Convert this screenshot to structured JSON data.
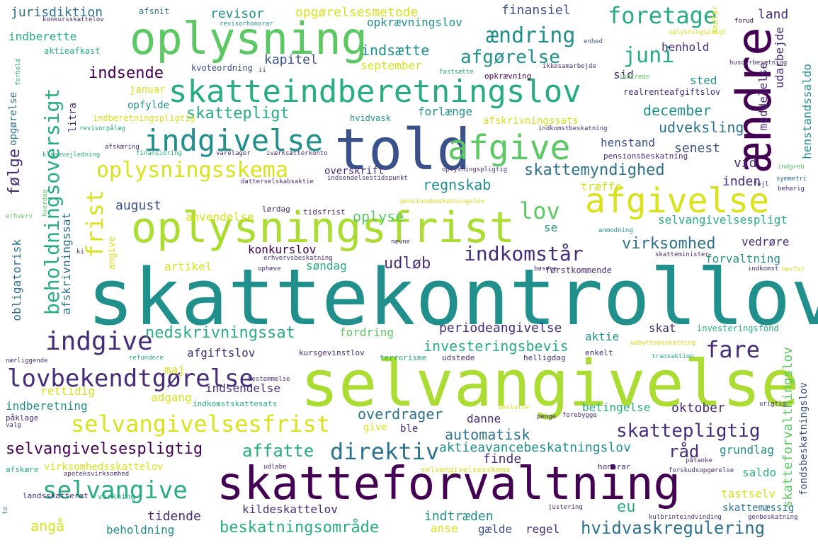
{
  "palette": {
    "c0": "#440154",
    "c1": "#472c7a",
    "c2": "#3b518b",
    "c3": "#2c718e",
    "c4": "#21908d",
    "c5": "#27ad81",
    "c6": "#5cc863",
    "c7": "#aadc32",
    "c8": "#d9e21a",
    "c9": "#fde725"
  },
  "words": {
    "w_skattekontrollov": "skattekontrollov",
    "w_selvangivelse": "selvangivelse",
    "w_skatteforvaltning": "skatteforvaltning",
    "w_told": "told",
    "w_oplysningsfrist": "oplysningsfrist",
    "w_oplysning": "oplysning",
    "w_skatteindberetningslov": "skatteindberetningslov",
    "w_aendre": "ændre",
    "w_afgivelse": "afgivelse",
    "w_indgivelse": "indgivelse",
    "w_afgive": "afgive",
    "w_oplysningsskema": "oplysningsskema",
    "w_selvangivelsesfrist": "selvangivelsesfrist",
    "w_lovbekendtgorelse": "lovbekendtgørelse",
    "w_selvangive": "selvangive",
    "w_indgive": "indgive",
    "w_beholdningsoversigt": "beholdningsoversigt",
    "w_foretage": "foretage",
    "w_aendring": "ændring",
    "w_juni": "juni",
    "w_afgorelse": "afgørelse",
    "w_lov": "lov",
    "w_frist": "frist",
    "w_indkomstar": "indkomstår",
    "w_fare": "fare",
    "w_direktiv": "direktiv",
    "w_skattepligtig": "skattepligtig",
    "w_selvangivelsespligtig": "selvangivelsespligtig",
    "w_hvidvaskregulering": "hvidvaskregulering",
    "w_beskatningsomrade": "beskatningsområde",
    "w_nedskrivningssat": "nedskrivningssat",
    "w_skattepligt": "skattepligt",
    "w_skattemyndighed": "skattemyndighed",
    "w_periodeangivelse": "periodeangivelse",
    "w_aktieavancebeskatningslov": "aktieavancebeskatningslov",
    "w_automatisk": "automatisk",
    "w_affatte": "affatte",
    "w_overdrager": "overdrager",
    "w_investeringsbevis": "investeringsbevis",
    "w_virksomhed": "virksomhed",
    "w_selvangivelsespligt": "selvangivelsespligt",
    "w_regnskab": "regnskab",
    "w_oplyse": "oplyse",
    "w_indsende": "indsende",
    "w_indsaette": "indsætte",
    "w_kapitel": "kapitel",
    "w_december": "december",
    "w_udveksling": "udveksling",
    "w_folge": "følge",
    "w_udlob": "udløb",
    "w_anvendelse": "anvendelse",
    "w_forlaenge": "forlænge",
    "w_september": "september",
    "w_opgorelsesmetode": "opgørelsesmetode",
    "w_revisor": "revisor",
    "w_jurisdiktion": "jurisdiktion",
    "w_finansiel": "finansiel",
    "w_land": "land",
    "w_opkraevningslov": "opkrævningslov",
    "w_indberette": "indberette",
    "w_sid": "sid",
    "w_henhold": "henhold",
    "w_sted": "sted",
    "w_meddelelse": "meddelelse",
    "w_udarbejde": "udarbejde",
    "w_realrenteafgiftslov": "realrenteafgiftslov",
    "w_henstandssaldo": "henstandssaldo",
    "w_august": "august",
    "w_traeffe": "træffe",
    "w_vid": "vid",
    "w_inden": "inden",
    "w_senest": "senest",
    "w_henstand": "henstand",
    "w_konkurslov": "konkurslov",
    "w_se": "se",
    "w_artikel": "artikel",
    "w_sondag": "søndag",
    "w_vedrore": "vedrøre",
    "w_forvaltning": "forvaltning",
    "w_forstkommende": "førstkommende",
    "w_obligatorisk": "obligatorisk",
    "w_afskrivningssat": "afskrivningssat",
    "w_angive": "angive",
    "w_aktie": "aktie",
    "w_skat": "skat",
    "w_fordring": "fordring",
    "w_investeringsfond": "investeringsfond",
    "w_afgiftslov": "afgiftslov",
    "w_maj": "maj",
    "w_rettidig": "rettidig",
    "w_indsendelse": "indsendelse",
    "w_adgang": "adgang",
    "w_indberetning": "indberetning",
    "w_give": "give",
    "w_ble": "ble",
    "w_danne": "danne",
    "w_oktober": "oktober",
    "w_betingelse": "betingelse",
    "w_finde": "finde",
    "w_raad": "råd",
    "w_grundlag": "grundlag",
    "w_saldo": "saldo",
    "w_virksomhedsskattelov": "virksomhedsskattelov",
    "w_tastselv": "tastselv",
    "w_eu": "eu",
    "w_kildeskattelov": "kildeskattelov",
    "w_indtraeden": "indtræden",
    "w_anse": "anse",
    "w_gaelde": "gælde",
    "w_regel": "regel",
    "w_tidende": "tidende",
    "w_beholdning": "beholdning",
    "w_anga": "angå",
    "w_skattemaessig": "skattemæssig",
    "w_skatteforvaltningslov": "skatteforvaltningslov",
    "w_fondsbeskatningslov": "fondsbeskatningslov",
    "w_januar": "januar",
    "w_opfylde": "opfylde",
    "w_indberetningspligtig": "indberetningspligtig",
    "w_litra": "litra",
    "w_afskrivningssats": "afskrivningssats",
    "w_indkomstbeskatning": "indkomstbeskatning",
    "w_overskrift": "overskrift",
    "w_pensionsbeskatning": "pensionsbeskatning",
    "w_opgorelse": "opgørelse",
    "w_hvidvask": "hvidvask",
    "w_opkraevning": "opkrævning",
    "w_kvoteordning": "kvoteordning",
    "w_aktieafkast": "aktieafkast",
    "w_afsnit": "afsnit",
    "w_konkursskattelov": "konkursskattelov",
    "w_revisorhonorar": "revisorhonorar",
    "w_enhed": "enhed",
    "w_medfor": "medfør",
    "w_forud": "forud",
    "w_oplysningspligt": "oplysningspligt",
    "w_ikkesamarbejde": "ikkesamarbejde",
    "w_husdyrbesaetning": "husdyrbesætning",
    "w_fastsaette": "fastsætte",
    "w_ii": "ii",
    "w_indtraede": "indtræde",
    "w_forhold": "forhold",
    "w_revisorpaalaeg": "revisorpålæg",
    "w_klagevejledning": "klagevejledning",
    "w_afskaering": "afskæring",
    "w_finansiering": "finansiering",
    "w_varelager": "varelager",
    "w_ivaerksaetterkonto": "iværksætterkonto",
    "w_datterselskabsaktie": "datterselskabsaktie",
    "w_indsendelsestidspunkt": "indsendelsestidspunkt",
    "w_oplysningspligtig": "oplysningspligtig",
    "w_indgreb": "indgreb",
    "w_symmetri": "symmetri",
    "w_behorig": "behørig",
    "w_fejl": "fejl",
    "w_tidsfrist": "tidsfrist",
    "w_lordag": "lørdag",
    "w_pensionsbeskatningslov": "pensionsbeskatningslov",
    "w_erhverv": "erhverv",
    "w_hverdag": "hverdag",
    "w_anmodning": "anmodning",
    "w_naevne": "nævne",
    "w_skatteminister": "skatteminister",
    "w_erhvervsbeskatning": "erhvervsbeskatning",
    "w_ophaeve": "ophæve",
    "w_basere": "basere",
    "w_indkomst": "indkomst",
    "w_herfor": "herfor",
    "w_ki": "ki",
    "w_naerliggende": "nærliggende",
    "w_refundere": "refundere",
    "w_kursgevinstlov": "kursgevinstlov",
    "w_enkelt": "enkelt",
    "w_udbyttebeskatning": "udbyttebeskatning",
    "w_terrorisme": "terrorisme",
    "w_udstede": "udstede",
    "w_helligdag": "helligdag",
    "w_transaktion": "transaktion",
    "w_bestemmelse": "bestemmelse",
    "w_indkomstskattesats": "indkomstskattesats",
    "w_paaklage": "påklage",
    "w_valg": "valg",
    "w_beslutte": "beslutte",
    "w_penge": "penge",
    "w_forebygge": "forebygge",
    "w_urigtig": "urigtig",
    "w_afskaere": "afskære",
    "w_apoteksvirksomhed": "apoteksvirksomhed",
    "w_udlabe": "udlabe",
    "w_honorar": "honorar",
    "w_forskudsopgorelse": "forskudsopgørelse",
    "w_paatanke": "påtanke",
    "w_selvangivelsesskema": "selvangivelsesskema",
    "w_landsskatteret": "landsskatteret",
    "w_virkning": "virkning",
    "w_justering": "justering",
    "w_kulbrinteindvinding": "kulbrinteindvinding",
    "w_genbeskatning": "genbeskatning",
    "w_to": "to"
  }
}
